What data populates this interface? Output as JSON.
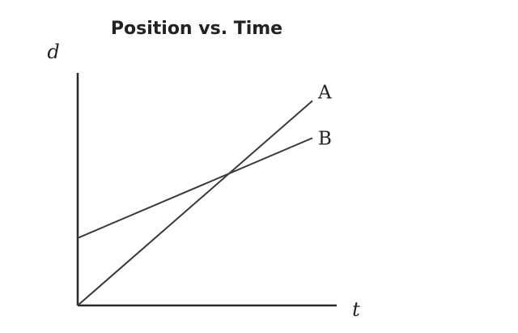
{
  "chart_data": {
    "type": "line",
    "title": "Position vs. Time",
    "xlabel": "t",
    "ylabel": "d",
    "xlim": [
      0,
      10
    ],
    "ylim": [
      0,
      10
    ],
    "grid": false,
    "legend": "none",
    "series": [
      {
        "name": "A",
        "x": [
          0,
          10
        ],
        "y": [
          0,
          8.8
        ]
      },
      {
        "name": "B",
        "x": [
          0,
          10
        ],
        "y": [
          2.9,
          7.2
        ]
      }
    ]
  }
}
